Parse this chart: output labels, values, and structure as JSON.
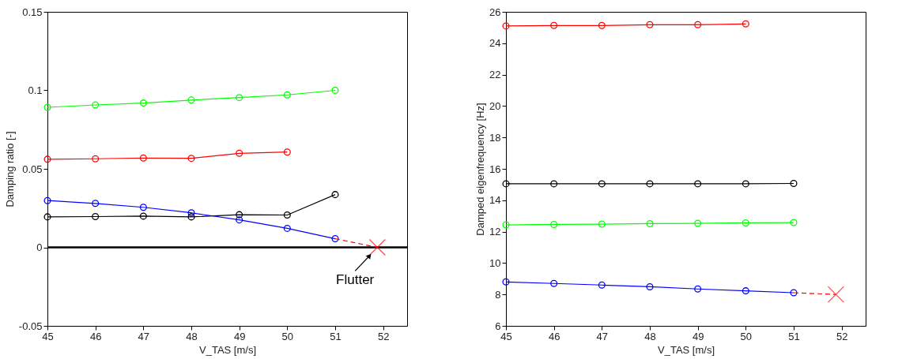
{
  "chart_data": [
    {
      "type": "line",
      "xlabel": "V_TAS [m/s]",
      "ylabel": "Damping ratio [-]",
      "xlim": [
        45,
        52.5
      ],
      "xticks": [
        45,
        46,
        47,
        48,
        49,
        50,
        51,
        52
      ],
      "ylim": [
        -0.05,
        0.15
      ],
      "yticks": [
        -0.05,
        0,
        0.05,
        0.1,
        0.15
      ],
      "grid": false,
      "marker": "circle",
      "series": [
        {
          "color": "#00ff00",
          "x": [
            45,
            46,
            47,
            48,
            49,
            50,
            51
          ],
          "values": [
            0.0892,
            0.0907,
            0.0919,
            0.0938,
            0.0954,
            0.0971,
            0.1
          ]
        },
        {
          "color": "#ff0000",
          "x": [
            45,
            46,
            47,
            48,
            49,
            50
          ],
          "values": [
            0.0561,
            0.0564,
            0.0569,
            0.0567,
            0.0599,
            0.0607
          ]
        },
        {
          "color": "#000000",
          "x": [
            45,
            46,
            47,
            48,
            49,
            50,
            51
          ],
          "values": [
            0.0194,
            0.0196,
            0.0199,
            0.0194,
            0.0208,
            0.0206,
            0.0336
          ]
        },
        {
          "color": "#0000ff",
          "x": [
            45,
            46,
            47,
            48,
            49,
            50,
            51
          ],
          "values": [
            0.0298,
            0.028,
            0.0255,
            0.022,
            0.0175,
            0.0121,
            0.0055
          ]
        },
        {
          "color": "#ff0000",
          "marker": "none",
          "line_style": "dashed",
          "x": [
            51,
            51.88
          ],
          "values": [
            0.0055,
            0
          ]
        },
        {
          "type": "scatter",
          "color": "#ff0000",
          "marker": "cross",
          "x": [
            51.88
          ],
          "values": [
            0
          ]
        }
      ],
      "ref_lines": [
        {
          "axis": "y",
          "value": 0,
          "color": "#000000"
        }
      ],
      "annotations": [
        {
          "text": "Flutter",
          "x": 51.88,
          "y": 0
        }
      ]
    },
    {
      "type": "line",
      "xlabel": "V_TAS [m/s]",
      "ylabel": "Damped eigenfrequency [Hz]",
      "xlim": [
        45,
        52.5
      ],
      "xticks": [
        45,
        46,
        47,
        48,
        49,
        50,
        51,
        52
      ],
      "ylim": [
        6,
        26
      ],
      "yticks": [
        6,
        8,
        10,
        12,
        14,
        16,
        18,
        20,
        22,
        24,
        26
      ],
      "grid": false,
      "marker": "circle",
      "series": [
        {
          "color": "#ff0000",
          "x": [
            45,
            46,
            47,
            48,
            49,
            50
          ],
          "values": [
            25.1,
            25.13,
            25.13,
            25.18,
            25.18,
            25.23
          ]
        },
        {
          "color": "#000000",
          "x": [
            45,
            46,
            47,
            48,
            49,
            50,
            51
          ],
          "values": [
            15.05,
            15.05,
            15.05,
            15.05,
            15.05,
            15.05,
            15.07
          ]
        },
        {
          "color": "#00ff00",
          "x": [
            45,
            46,
            47,
            48,
            49,
            50,
            51
          ],
          "values": [
            12.43,
            12.46,
            12.48,
            12.51,
            12.53,
            12.56,
            12.58
          ]
        },
        {
          "color": "#0000ff",
          "x": [
            45,
            46,
            47,
            48,
            49,
            50,
            51
          ],
          "values": [
            8.8,
            8.7,
            8.6,
            8.49,
            8.35,
            8.23,
            8.11
          ]
        },
        {
          "color": "#ff0000",
          "marker": "none",
          "line_style": "dashed",
          "x": [
            51,
            51.88
          ],
          "values": [
            8.11,
            8.0
          ]
        },
        {
          "type": "scatter",
          "color": "#ff0000",
          "marker": "cross",
          "x": [
            51.88
          ],
          "values": [
            8.0
          ]
        }
      ]
    }
  ]
}
